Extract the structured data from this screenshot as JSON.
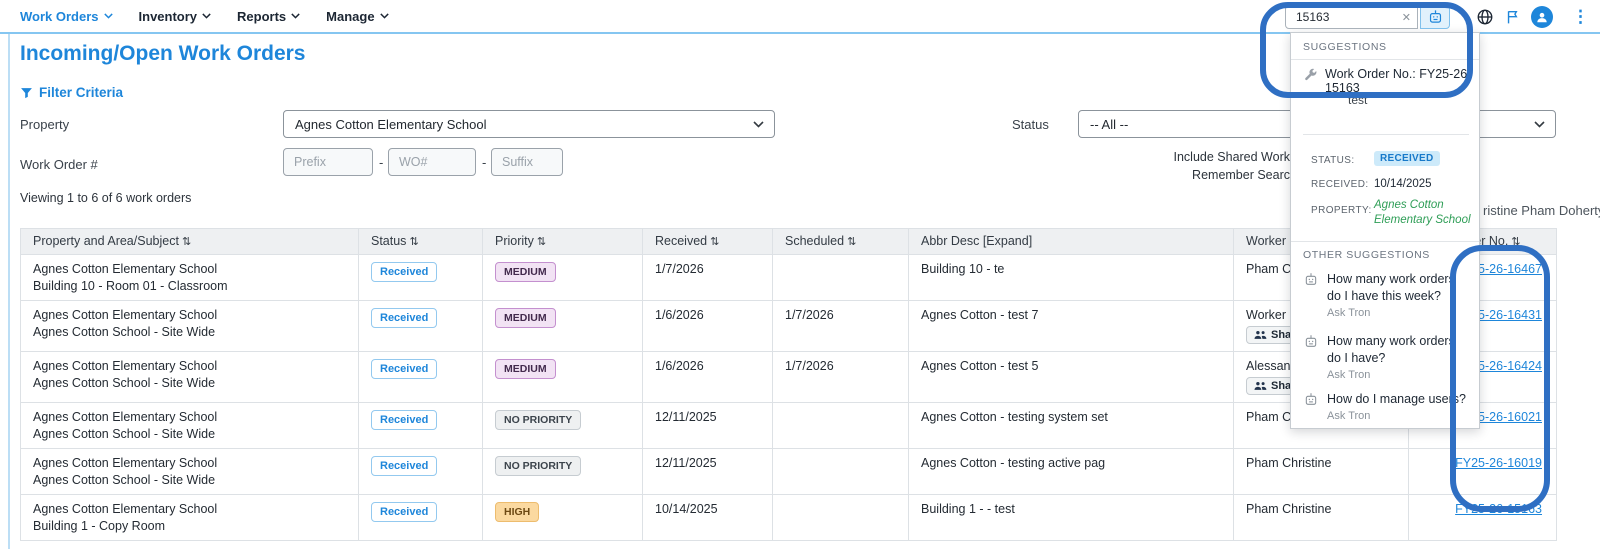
{
  "nav": {
    "items": [
      {
        "label": "Work Orders",
        "active": true
      },
      {
        "label": "Inventory",
        "active": false
      },
      {
        "label": "Reports",
        "active": false
      },
      {
        "label": "Manage",
        "active": false
      }
    ]
  },
  "topbar": {
    "search_value": "15163",
    "clear_glyph": "✕",
    "kebab_glyph": "⋮",
    "icons": [
      "robot-icon",
      "globe-icon",
      "flag-icon",
      "avatar-icon",
      "kebab-icon"
    ]
  },
  "page": {
    "title": "Incoming/Open Work Orders",
    "filter_criteria": "Filter Criteria",
    "viewing": "Viewing 1 to 6 of 6 work orders",
    "user_fragment": "ristine Pham Doherty"
  },
  "filters": {
    "property_label": "Property",
    "property_value": "Agnes Cotton Elementary School",
    "status_label": "Status",
    "status_value": "-- All --",
    "work_order_label": "Work Order #",
    "prefix_placeholder": "Prefix",
    "wo_placeholder": "WO#",
    "suffix_placeholder": "Suffix",
    "dash": "-",
    "include_shared_label": "Include Shared Work",
    "remember_search_label": "Remember Searc"
  },
  "table": {
    "headers": [
      {
        "label": "Property and Area/Subject",
        "sort": true
      },
      {
        "label": "Status",
        "sort": true
      },
      {
        "label": "Priority",
        "sort": true
      },
      {
        "label": "Received",
        "sort": true
      },
      {
        "label": "Scheduled",
        "sort": true
      },
      {
        "label": "Abbr Desc [Expand]",
        "sort": false
      },
      {
        "label": "Worker",
        "sort": false
      },
      {
        "label": "Work Order No.",
        "sort": true
      }
    ],
    "sort_glyph": "⇅",
    "rows": [
      {
        "property_line1": "Agnes Cotton Elementary School",
        "property_line2": "Building 10 - Room 01 - Classroom",
        "status": "Received",
        "priority": "MEDIUM",
        "priority_type": "medium",
        "received": "1/7/2026",
        "scheduled": "",
        "abbr": "Building 10 - te",
        "worker": "Pham Christine",
        "shared": false,
        "wo_no": "FY25-26-16467"
      },
      {
        "property_line1": "Agnes Cotton Elementary School",
        "property_line2": "Agnes Cotton School - Site Wide",
        "status": "Received",
        "priority": "MEDIUM",
        "priority_type": "medium",
        "received": "1/6/2026",
        "scheduled": "1/7/2026",
        "abbr": "Agnes Cotton - test 7",
        "worker": "Worker",
        "shared": true,
        "wo_no": "FY25-26-16431"
      },
      {
        "property_line1": "Agnes Cotton Elementary School",
        "property_line2": "Agnes Cotton School - Site Wide",
        "status": "Received",
        "priority": "MEDIUM",
        "priority_type": "medium",
        "received": "1/6/2026",
        "scheduled": "1/7/2026",
        "abbr": "Agnes Cotton - test 5",
        "worker": "Alessan",
        "shared": true,
        "wo_no": "FY25-26-16424"
      },
      {
        "property_line1": "Agnes Cotton Elementary School",
        "property_line2": "Agnes Cotton School - Site Wide",
        "status": "Received",
        "priority": "NO PRIORITY",
        "priority_type": "none",
        "received": "12/11/2025",
        "scheduled": "",
        "abbr": "Agnes Cotton - testing system set",
        "worker": "Pham Christine",
        "shared": false,
        "wo_no": "FY25-26-16021"
      },
      {
        "property_line1": "Agnes Cotton Elementary School",
        "property_line2": "Agnes Cotton School - Site Wide",
        "status": "Received",
        "priority": "NO PRIORITY",
        "priority_type": "none",
        "received": "12/11/2025",
        "scheduled": "",
        "abbr": "Agnes Cotton - testing active pag",
        "worker": "Pham Christine",
        "shared": false,
        "wo_no": "FY25-26-16019"
      },
      {
        "property_line1": "Agnes Cotton Elementary School",
        "property_line2": "Building 1 - Copy Room",
        "status": "Received",
        "priority": "HIGH",
        "priority_type": "high",
        "received": "10/14/2025",
        "scheduled": "",
        "abbr": "Building 1 - - test",
        "worker": "Pham Christine",
        "shared": false,
        "wo_no": "FY25-26-15163"
      }
    ],
    "shared_badge_label": "Shared"
  },
  "suggestions": {
    "header": "SUGGESTIONS",
    "work_order_item": "Work Order No.: FY25-26-15163",
    "preview_text": "test",
    "details": {
      "status_label": "STATUS:",
      "status_value": "RECEIVED",
      "received_label": "RECEIVED:",
      "received_value": "10/14/2025",
      "property_label": "PROPERTY:",
      "property_value_line1": "Agnes Cotton",
      "property_value_line2": "Elementary School"
    },
    "other_header": "OTHER SUGGESTIONS",
    "items": [
      {
        "question": "How many work orders do I have this week?",
        "source": "Ask Tron"
      },
      {
        "question": "How many work orders do I have?",
        "source": "Ask Tron"
      },
      {
        "question": "How do I manage users?",
        "source": "Ask Tron"
      }
    ]
  },
  "colors": {
    "accent_blue": "#1e86da",
    "annotation_ring": "#2f6fc3",
    "status_received_bg": "#cdeafa",
    "priority_medium_bg": "#f2e3f4",
    "priority_high_bg": "#fbd9a0",
    "property_green": "#2f9e57"
  }
}
